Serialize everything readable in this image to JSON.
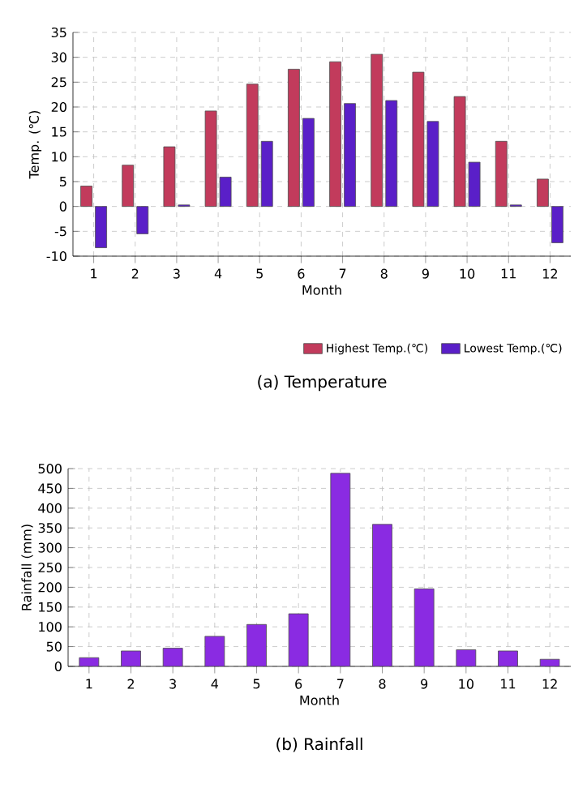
{
  "chart_data": [
    {
      "type": "bar",
      "title": "(a) Temperature",
      "xlabel": "Month",
      "ylabel": "Temp. (℃)",
      "categories": [
        "1",
        "2",
        "3",
        "4",
        "5",
        "6",
        "7",
        "8",
        "9",
        "10",
        "11",
        "12"
      ],
      "series": [
        {
          "name": "Highest Temp.(℃)",
          "color": "#c23b5c",
          "values": [
            4.1,
            8.3,
            12,
            19.2,
            24.6,
            27.6,
            29.1,
            30.6,
            27,
            22.1,
            13.1,
            5.5
          ]
        },
        {
          "name": "Lowest Temp.(℃)",
          "color": "#5a1fc8",
          "values": [
            -8.3,
            -5.5,
            0.3,
            5.9,
            13.1,
            17.7,
            20.7,
            21.3,
            17.1,
            8.9,
            0.3,
            -7.3
          ]
        }
      ],
      "ylim": [
        -10,
        35
      ],
      "yticks": [
        -10,
        -5,
        0,
        5,
        10,
        15,
        20,
        25,
        30,
        35
      ],
      "grid": true,
      "legend": "bottom right"
    },
    {
      "type": "bar",
      "title": "(b) Rainfall",
      "xlabel": "Month",
      "ylabel": "Rainfall (mm)",
      "categories": [
        "1",
        "2",
        "3",
        "4",
        "5",
        "6",
        "7",
        "8",
        "9",
        "10",
        "11",
        "12"
      ],
      "series": [
        {
          "color": "#8a2be2",
          "values": [
            22,
            39,
            46,
            76,
            106,
            133,
            488,
            359,
            196,
            42,
            39,
            18
          ]
        }
      ],
      "ylim": [
        0,
        500
      ],
      "yticks": [
        0,
        50,
        100,
        150,
        200,
        250,
        300,
        350,
        400,
        450,
        500
      ],
      "grid": true
    }
  ]
}
